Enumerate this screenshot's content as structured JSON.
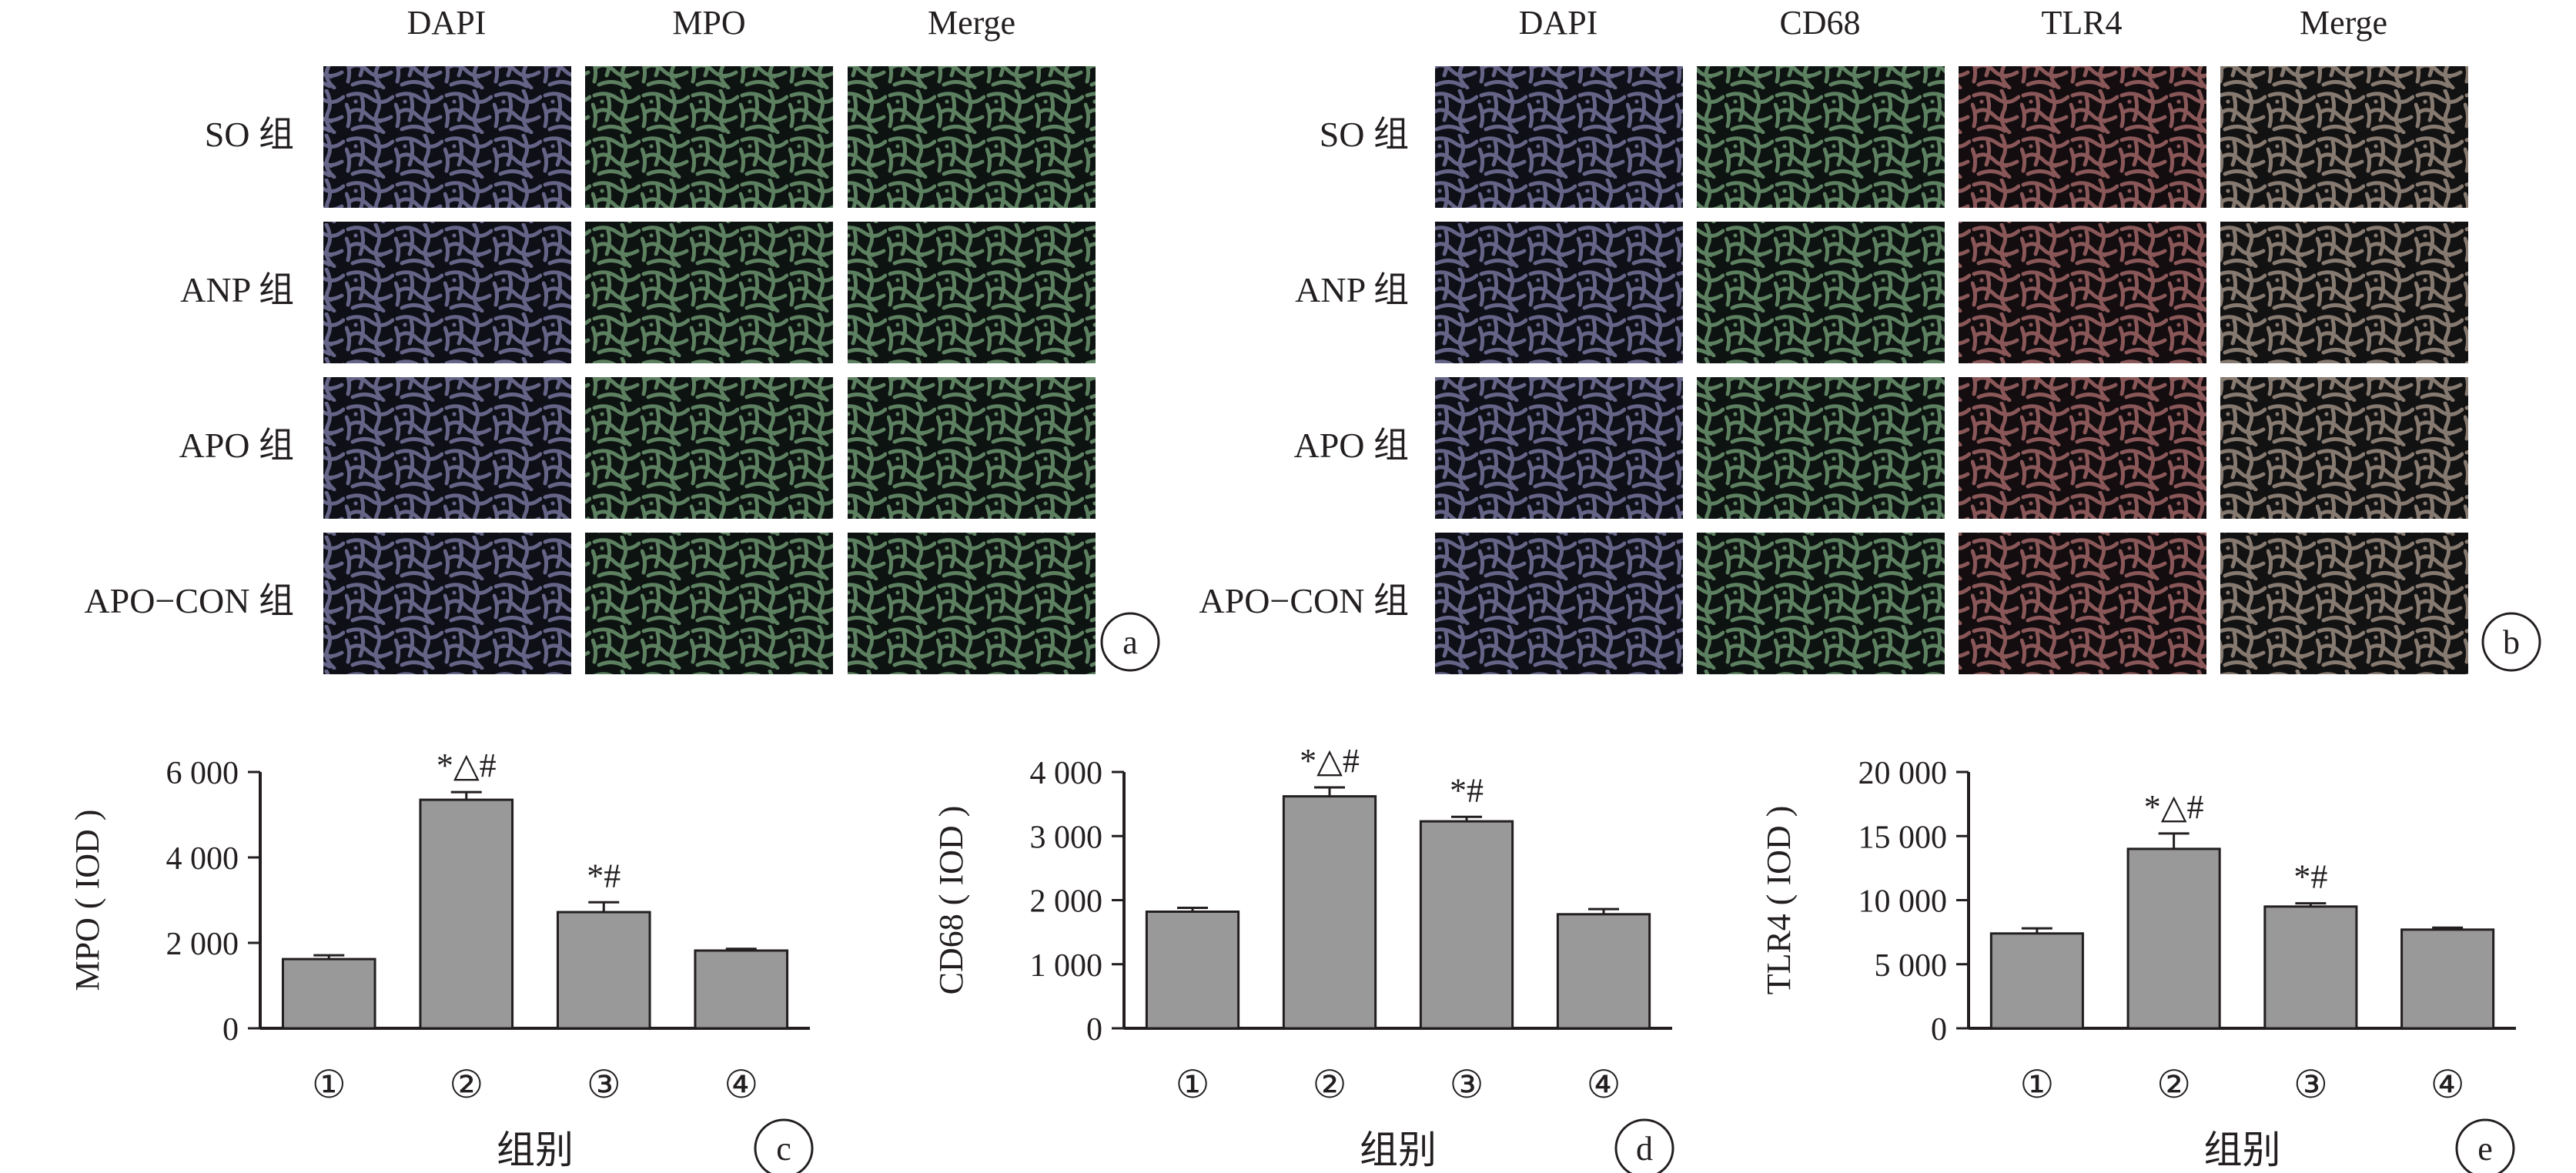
{
  "panel_a": {
    "badge": "a",
    "columns": [
      "DAPI",
      "MPO",
      "Merge"
    ],
    "rows": [
      "SO 组",
      "ANP 组",
      "APO 组",
      "APO−CON 组"
    ],
    "tile_colors": [
      "#5a55c8",
      "#3cb444",
      "#3cb444"
    ]
  },
  "panel_b": {
    "badge": "b",
    "columns": [
      "DAPI",
      "CD68",
      "TLR4",
      "Merge"
    ],
    "rows": [
      "SO 组",
      "ANP 组",
      "APO 组",
      "APO−CON 组"
    ],
    "tile_colors": [
      "#5a55c8",
      "#3cb444",
      "#d8282a",
      "#c8a078"
    ]
  },
  "chart_data": [
    {
      "type": "bar",
      "badge": "c",
      "categories": [
        "①",
        "②",
        "③",
        "④"
      ],
      "values": [
        1620,
        5350,
        2720,
        1820
      ],
      "errors": [
        90,
        180,
        230,
        40
      ],
      "annotations": [
        "",
        "*△#",
        "*#",
        ""
      ],
      "ylabel": "MPO ( IOD )",
      "xlabel": "组别",
      "ylim": [
        0,
        6000
      ],
      "yticks": [
        0,
        2000,
        4000,
        6000
      ],
      "yticklabels": [
        "0",
        "2 000",
        "4 000",
        "6 000"
      ]
    },
    {
      "type": "bar",
      "badge": "d",
      "categories": [
        "①",
        "②",
        "③",
        "④"
      ],
      "values": [
        1820,
        3620,
        3230,
        1780
      ],
      "errors": [
        60,
        140,
        70,
        80
      ],
      "annotations": [
        "",
        "*△#",
        "*#",
        ""
      ],
      "ylabel": "CD68 ( IOD )",
      "xlabel": "组别",
      "ylim": [
        0,
        4000
      ],
      "yticks": [
        0,
        1000,
        2000,
        3000,
        4000
      ],
      "yticklabels": [
        "0",
        "1 000",
        "2 000",
        "3 000",
        "4 000"
      ]
    },
    {
      "type": "bar",
      "badge": "e",
      "categories": [
        "①",
        "②",
        "③",
        "④"
      ],
      "values": [
        7400,
        14000,
        9500,
        7700
      ],
      "errors": [
        400,
        1200,
        250,
        150
      ],
      "annotations": [
        "",
        "*△#",
        "*#",
        ""
      ],
      "ylabel": "TLR4 ( IOD )",
      "xlabel": "组别",
      "ylim": [
        0,
        20000
      ],
      "yticks": [
        0,
        5000,
        10000,
        15000,
        20000
      ],
      "yticklabels": [
        "0",
        "5 000",
        "10 000",
        "15 000",
        "20 000"
      ]
    }
  ],
  "colors": {
    "bar_fill": "#999999",
    "axis": "#231f20",
    "tile_bg": "#15161a"
  }
}
